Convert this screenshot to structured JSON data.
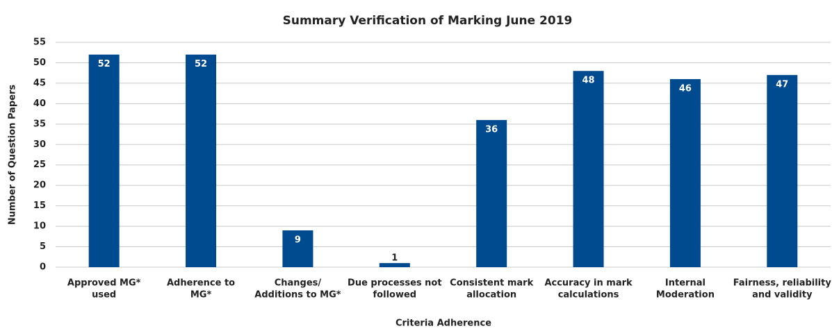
{
  "chart_data": {
    "type": "bar",
    "title": "Summary Verification of Marking June 2019",
    "x_label": "Criteria Adherence",
    "y_label": "Number of Question Papers",
    "categories": [
      [
        "Approved MG*",
        "used"
      ],
      [
        "Adherence to",
        "MG*"
      ],
      [
        "Changes/",
        "Additions to MG*"
      ],
      [
        "Due processes not",
        "followed"
      ],
      [
        "Consistent mark",
        "allocation"
      ],
      [
        "Accuracy in mark",
        "calculations"
      ],
      [
        "Internal",
        "Moderation"
      ],
      [
        "Fairness, reliability",
        "and validity"
      ]
    ],
    "values": [
      52,
      52,
      9,
      1,
      36,
      48,
      46,
      47
    ],
    "color": "#004a8f",
    "ylim": [
      0,
      55
    ],
    "yticks": [
      0,
      5,
      10,
      15,
      20,
      25,
      30,
      35,
      40,
      45,
      50,
      55
    ],
    "grid": true
  }
}
